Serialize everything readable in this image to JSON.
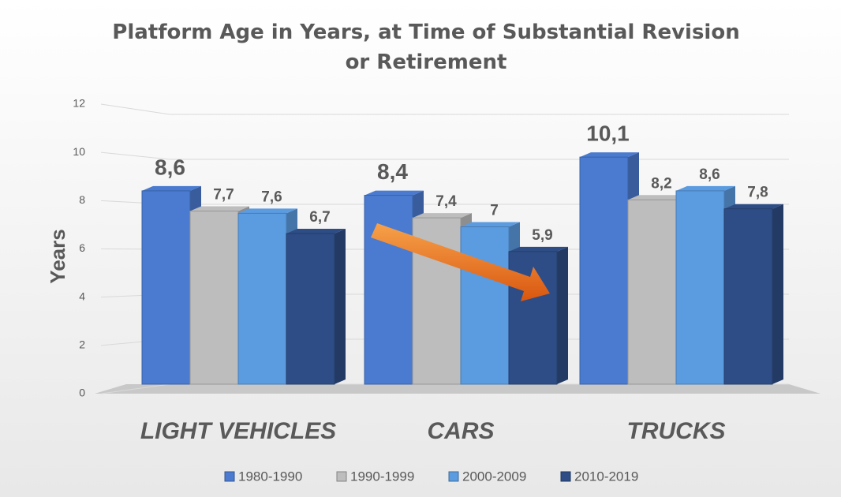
{
  "chart_data": {
    "type": "bar",
    "title": "Platform Age in Years, at Time of Substantial Revision or Retirement",
    "ylabel": "Years",
    "categories": [
      "LIGHT VEHICLES",
      "CARS",
      "TRUCKS"
    ],
    "series": [
      {
        "name": "1980-1990",
        "color": "#4a7bd0",
        "values": [
          8.6,
          8.4,
          10.1
        ],
        "value_labels": [
          "8,6",
          "8,4",
          "10,1"
        ]
      },
      {
        "name": "1990-1999",
        "color": "#bdbdbd",
        "values": [
          7.7,
          7.4,
          8.2
        ],
        "value_labels": [
          "7,7",
          "7,4",
          "8,2"
        ]
      },
      {
        "name": "2000-2009",
        "color": "#5b9be0",
        "values": [
          7.6,
          7,
          8.6
        ],
        "value_labels": [
          "7,6",
          "7",
          "8,6"
        ]
      },
      {
        "name": "2010-2019",
        "color": "#2e4d86",
        "values": [
          6.7,
          5.9,
          7.8
        ],
        "value_labels": [
          "6,7",
          "5,9",
          "7,8"
        ]
      }
    ],
    "ylim": [
      0,
      12
    ],
    "yticks": [
      0,
      2,
      4,
      6,
      8,
      10,
      12
    ],
    "grid": true
  }
}
